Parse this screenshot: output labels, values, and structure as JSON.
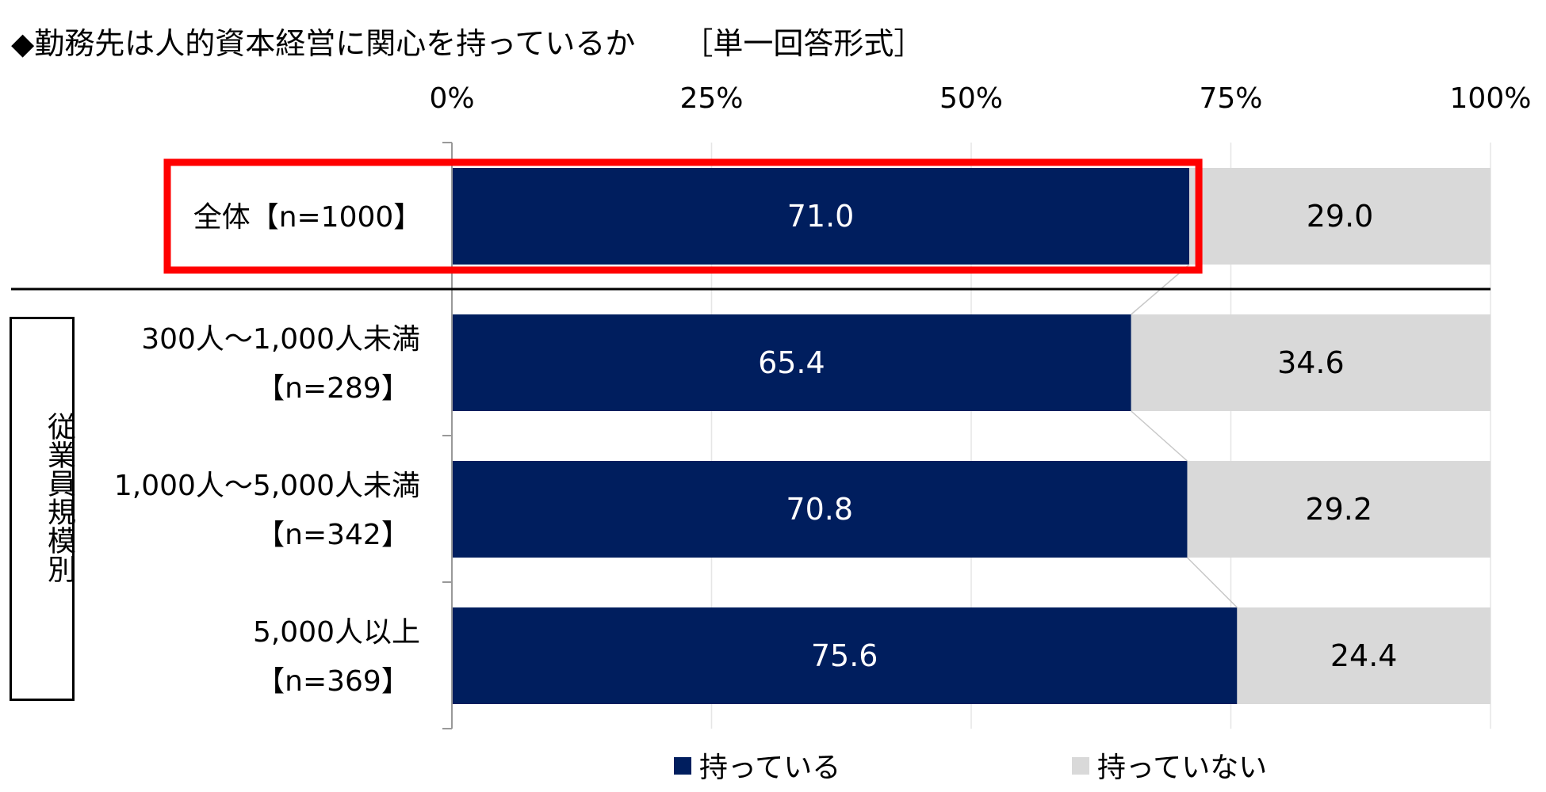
{
  "title": "◆勤務先は人的資本経営に関心を持っているか",
  "answer_format": "［単一回答形式］",
  "group_label": "従業員規模別",
  "colors": {
    "series1": "#001e5e",
    "series2": "#d9d9d9",
    "highlight": "#ff0000"
  },
  "legend": [
    {
      "name": "持っている",
      "color": "#001e5e"
    },
    {
      "name": "持っていない",
      "color": "#d9d9d9"
    }
  ],
  "chart_data": {
    "type": "bar",
    "orientation": "horizontal",
    "stacked": true,
    "unit": "%",
    "xlim": [
      0,
      100
    ],
    "xticks": [
      "0%",
      "25%",
      "50%",
      "75%",
      "100%"
    ],
    "categories": [
      {
        "line1": "全体【n=1000】",
        "line2": ""
      },
      {
        "line1": "300人～1,000人未満",
        "line2": "【n=289】"
      },
      {
        "line1": "1,000人～5,000人未満",
        "line2": "【n=342】"
      },
      {
        "line1": "5,000人以上",
        "line2": "【n=369】"
      }
    ],
    "series": [
      {
        "name": "持っている",
        "values": [
          71.0,
          65.4,
          70.8,
          75.6
        ]
      },
      {
        "name": "持っていない",
        "values": [
          29.0,
          34.6,
          29.2,
          24.4
        ]
      }
    ],
    "value_labels": [
      [
        "71.0",
        "65.4",
        "70.8",
        "75.6"
      ],
      [
        "29.0",
        "34.6",
        "29.2",
        "24.4"
      ]
    ],
    "highlighted_category": 0,
    "grid": true,
    "legend_position": "bottom"
  }
}
